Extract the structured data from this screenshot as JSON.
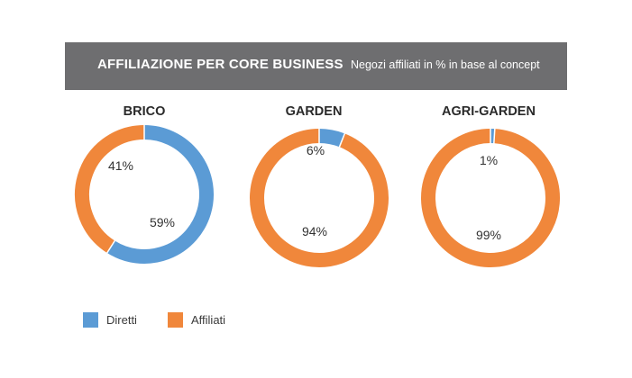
{
  "header": {
    "title": "AFFILIAZIONE PER CORE BUSINESS",
    "separator": "-",
    "subtitle": "Negozi affiliati in % in base al concept"
  },
  "colors": {
    "diretti": "#5b9bd5",
    "affiliati": "#f0873b",
    "header_bg": "#6e6e70"
  },
  "legend": [
    {
      "label": "Diretti",
      "color": "#5b9bd5"
    },
    {
      "label": "Affiliati",
      "color": "#f0873b"
    }
  ],
  "chart_data": [
    {
      "type": "pie",
      "title": "BRICO",
      "series": [
        {
          "name": "Diretti",
          "value": 59,
          "label": "59%"
        },
        {
          "name": "Affiliati",
          "value": 41,
          "label": "41%"
        }
      ]
    },
    {
      "type": "pie",
      "title": "GARDEN",
      "series": [
        {
          "name": "Diretti",
          "value": 6,
          "label": "6%"
        },
        {
          "name": "Affiliati",
          "value": 94,
          "label": "94%"
        }
      ]
    },
    {
      "type": "pie",
      "title": "AGRI-GARDEN",
      "series": [
        {
          "name": "Diretti",
          "value": 1,
          "label": "1%"
        },
        {
          "name": "Affiliati",
          "value": 99,
          "label": "99%"
        }
      ]
    }
  ]
}
